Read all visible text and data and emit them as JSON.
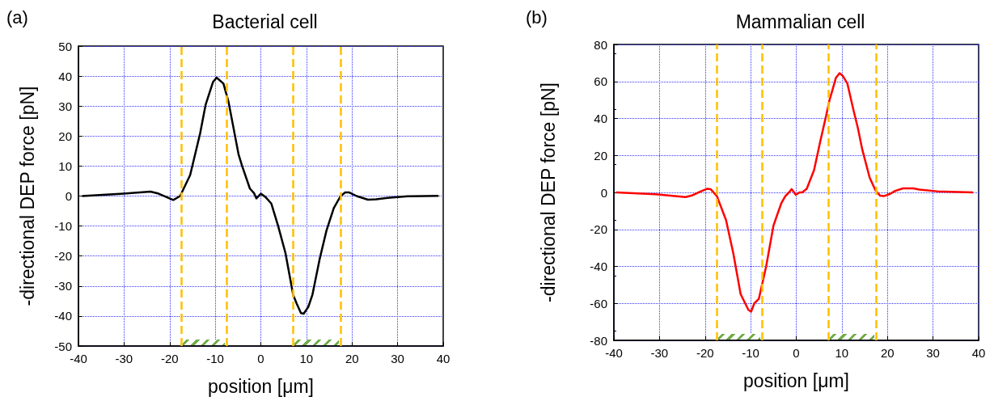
{
  "chart_data": [
    {
      "type": "line",
      "title": "Bacterial cell",
      "xlabel": "position [μm]",
      "ylabel": "-directional DEP force [pN]",
      "annotations": [
        "(a)"
      ],
      "x": [
        -39.2,
        -30.1,
        -24.2,
        -22.4,
        -19.2,
        -17.7,
        -15.5,
        -13.3,
        -12.1,
        -10.5,
        -9.7,
        -8.2,
        -7.1,
        -4.9,
        -4.1,
        -2.4,
        -1.5,
        -0.97,
        0,
        1.0,
        2.3,
        3.8,
        5.4,
        7.1,
        7.9,
        8.8,
        9.4,
        10.4,
        11.3,
        12.9,
        14.4,
        16,
        17.5,
        18.5,
        19.4,
        21,
        23.5,
        25.3,
        27.8,
        32.2,
        39
      ],
      "series": [
        {
          "color": "#000000",
          "values": [
            0,
            0.8,
            1.5,
            0.8,
            -1.3,
            0,
            7,
            21,
            30.5,
            38,
            39.5,
            37.5,
            31.5,
            14,
            10,
            2.5,
            1,
            -0.8,
            0.8,
            -0.3,
            -2.5,
            -10,
            -19,
            -33,
            -36,
            -39,
            -39.2,
            -37,
            -33,
            -21,
            -11.5,
            -4,
            0,
            1.2,
            1.2,
            0,
            -1.2,
            -1.1,
            -0.6,
            -0.1,
            0.1
          ]
        }
      ],
      "xlim": [
        -40,
        40
      ],
      "xticks": [
        -40,
        -30,
        -20,
        -10,
        0,
        10,
        20,
        30,
        40
      ],
      "ylim": [
        -50,
        50
      ],
      "yticks": [
        -50,
        -40,
        -30,
        -20,
        -10,
        0,
        10,
        20,
        30,
        40,
        50
      ],
      "grid": true,
      "marker": "none",
      "line_style": "solid",
      "ref_lines": [
        {
          "axis": "x",
          "value": -17.5,
          "color": "#ffc000",
          "line_style": "dashed"
        },
        {
          "axis": "x",
          "value": -7.5,
          "color": "#ffc000",
          "line_style": "dashed"
        },
        {
          "axis": "x",
          "value": 7,
          "color": "#ffc000",
          "line_style": "dashed"
        },
        {
          "axis": "x",
          "value": 17.5,
          "color": "#ffc000",
          "line_style": "dashed"
        }
      ]
    },
    {
      "type": "line",
      "title": "Mammalian cell",
      "xlabel": "position [μm]",
      "ylabel": "-directional DEP force [pN]",
      "annotations": [
        "(b)"
      ],
      "x": [
        -39.5,
        -30.9,
        -24.3,
        -22.7,
        -21,
        -19.5,
        -18.8,
        -17.4,
        -15.4,
        -13.8,
        -12.2,
        -10.5,
        -9.9,
        -9.2,
        -8.2,
        -6.6,
        -5,
        -4.3,
        -3.3,
        -2.4,
        -1.6,
        -1,
        -0.1,
        0.7,
        1.3,
        2.3,
        3.9,
        5.3,
        6.6,
        7.3,
        7.9,
        8.7,
        9.5,
        10.2,
        11.2,
        12.5,
        13.5,
        14.5,
        16.1,
        17.4,
        18.4,
        19.2,
        20.4,
        21.7,
        23.4,
        25.7,
        27,
        30.9,
        38.8
      ],
      "series": [
        {
          "color": "#ff0000",
          "values": [
            0,
            -1,
            -2.5,
            -1.5,
            0.5,
            2,
            1.8,
            -2,
            -15,
            -33,
            -55,
            -63.5,
            -64.5,
            -60,
            -57.5,
            -40,
            -18,
            -13,
            -6,
            -2,
            0,
            1.8,
            -1.3,
            0,
            0,
            2,
            12,
            28,
            42,
            50,
            55,
            62,
            64.5,
            63,
            59,
            45,
            35,
            23,
            8,
            1,
            -1.8,
            -2,
            -1,
            0.8,
            2.2,
            2.2,
            1.5,
            0.6,
            0
          ]
        }
      ],
      "xlim": [
        -40,
        40
      ],
      "xticks": [
        -40,
        -30,
        -20,
        -10,
        0,
        10,
        20,
        30,
        40
      ],
      "ylim": [
        -80,
        80
      ],
      "yticks": [
        -80,
        -60,
        -40,
        -20,
        0,
        20,
        40,
        60,
        80
      ],
      "grid": true,
      "marker": "none",
      "line_style": "solid",
      "ref_lines": [
        {
          "axis": "x",
          "value": -17.5,
          "color": "#ffc000",
          "line_style": "dashed"
        },
        {
          "axis": "x",
          "value": -7.5,
          "color": "#ffc000",
          "line_style": "dashed"
        },
        {
          "axis": "x",
          "value": 7,
          "color": "#ffc000",
          "line_style": "dashed"
        },
        {
          "axis": "x",
          "value": 17.5,
          "color": "#ffc000",
          "line_style": "dashed"
        }
      ]
    }
  ]
}
